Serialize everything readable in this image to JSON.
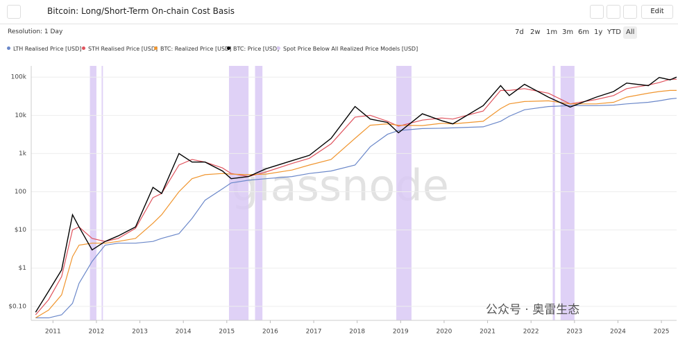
{
  "ui": {
    "resolution": "Resolution: 1 Day",
    "ranges": [
      "7d",
      "2w",
      "1m",
      "3m",
      "6m",
      "1y",
      "YTD",
      "All"
    ],
    "edit": "Edit",
    "watermark": "glassnode",
    "credit": "公众号 · 奥雷生态"
  },
  "chart_data": {
    "type": "line",
    "title": "Bitcoin: Long/Short-Term On-chain Cost Basis",
    "log_y": true,
    "x": [
      2010.6,
      2010.9,
      2011.2,
      2011.45,
      2011.6,
      2011.9,
      2012.2,
      2012.5,
      2012.9,
      2013.3,
      2013.5,
      2013.9,
      2014.2,
      2014.5,
      2014.9,
      2015.1,
      2015.5,
      2015.9,
      2016.5,
      2016.9,
      2017.4,
      2017.95,
      2018.3,
      2018.7,
      2018.95,
      2019.5,
      2019.95,
      2020.2,
      2020.9,
      2021.3,
      2021.5,
      2021.85,
      2022.4,
      2022.9,
      2023.5,
      2023.9,
      2024.2,
      2024.7,
      2024.95,
      2025.2,
      2025.35
    ],
    "series": [
      {
        "name": "LTH Realised Price [USD]",
        "color": "#6a87c9",
        "values": [
          0.05,
          0.05,
          0.06,
          0.12,
          0.4,
          1.5,
          4,
          4.5,
          4.5,
          5,
          6,
          8,
          20,
          60,
          120,
          170,
          200,
          220,
          250,
          300,
          350,
          500,
          1500,
          3200,
          4000,
          4500,
          4600,
          4700,
          5000,
          7000,
          9500,
          14000,
          17000,
          18000,
          18000,
          18500,
          20000,
          22000,
          24000,
          27000,
          28000
        ]
      },
      {
        "name": "STH Realised Price [USD]",
        "color": "#e0535d",
        "values": [
          0.06,
          0.15,
          0.6,
          10,
          12,
          6,
          5,
          6,
          11,
          70,
          90,
          500,
          700,
          600,
          420,
          300,
          250,
          330,
          550,
          750,
          1800,
          9000,
          10000,
          7000,
          5200,
          7500,
          8500,
          8000,
          13000,
          45000,
          45000,
          50000,
          38000,
          20000,
          26000,
          33000,
          50000,
          62000,
          72000,
          88000,
          88000
        ]
      },
      {
        "name": "BTC: Realized Price [USD]",
        "color": "#f0952e",
        "values": [
          0.05,
          0.08,
          0.2,
          2,
          4,
          4.5,
          4.5,
          5,
          6,
          15,
          25,
          100,
          220,
          280,
          300,
          290,
          280,
          290,
          370,
          500,
          700,
          2500,
          5500,
          6000,
          5500,
          5400,
          6200,
          6000,
          7000,
          15000,
          20000,
          23000,
          24000,
          20000,
          20000,
          22000,
          30000,
          38000,
          42000,
          45000,
          45000
        ]
      },
      {
        "name": "BTC: Price [USD]",
        "color": "#000000",
        "values": [
          0.07,
          0.25,
          0.9,
          25,
          12,
          3,
          5,
          7,
          12,
          130,
          90,
          1000,
          600,
          600,
          350,
          220,
          250,
          400,
          650,
          900,
          2500,
          17000,
          8000,
          6500,
          3500,
          11000,
          7200,
          6000,
          18000,
          60000,
          33000,
          65000,
          30000,
          16500,
          30000,
          42000,
          70000,
          60000,
          98000,
          85000,
          100000
        ]
      }
    ],
    "shaded_name": "Spot Price Below All Realized Price Models [USD]",
    "shaded_color": "#d9c9f5",
    "shaded_regions": [
      [
        2011.85,
        2012.0
      ],
      [
        2012.12,
        2012.15
      ],
      [
        2015.05,
        2015.5
      ],
      [
        2015.65,
        2015.82
      ],
      [
        2018.9,
        2019.25
      ],
      [
        2022.5,
        2022.55
      ],
      [
        2022.68,
        2023.0
      ]
    ],
    "xlim": [
      2010.5,
      2025.35
    ],
    "xticks": [
      2011,
      2012,
      2013,
      2014,
      2015,
      2016,
      2017,
      2018,
      2019,
      2020,
      2021,
      2022,
      2023,
      2024,
      2025
    ],
    "ylim": [
      0.043,
      160000
    ],
    "yticks": [
      {
        "value": 0.1,
        "label": "$0.10"
      },
      {
        "value": 1,
        "label": "$1"
      },
      {
        "value": 10,
        "label": "$10"
      },
      100,
      {
        "value": 1000,
        "label": "1k"
      },
      {
        "value": 10000,
        "label": "10k"
      },
      {
        "value": 100000,
        "label": "100k"
      }
    ],
    "grid": true
  }
}
